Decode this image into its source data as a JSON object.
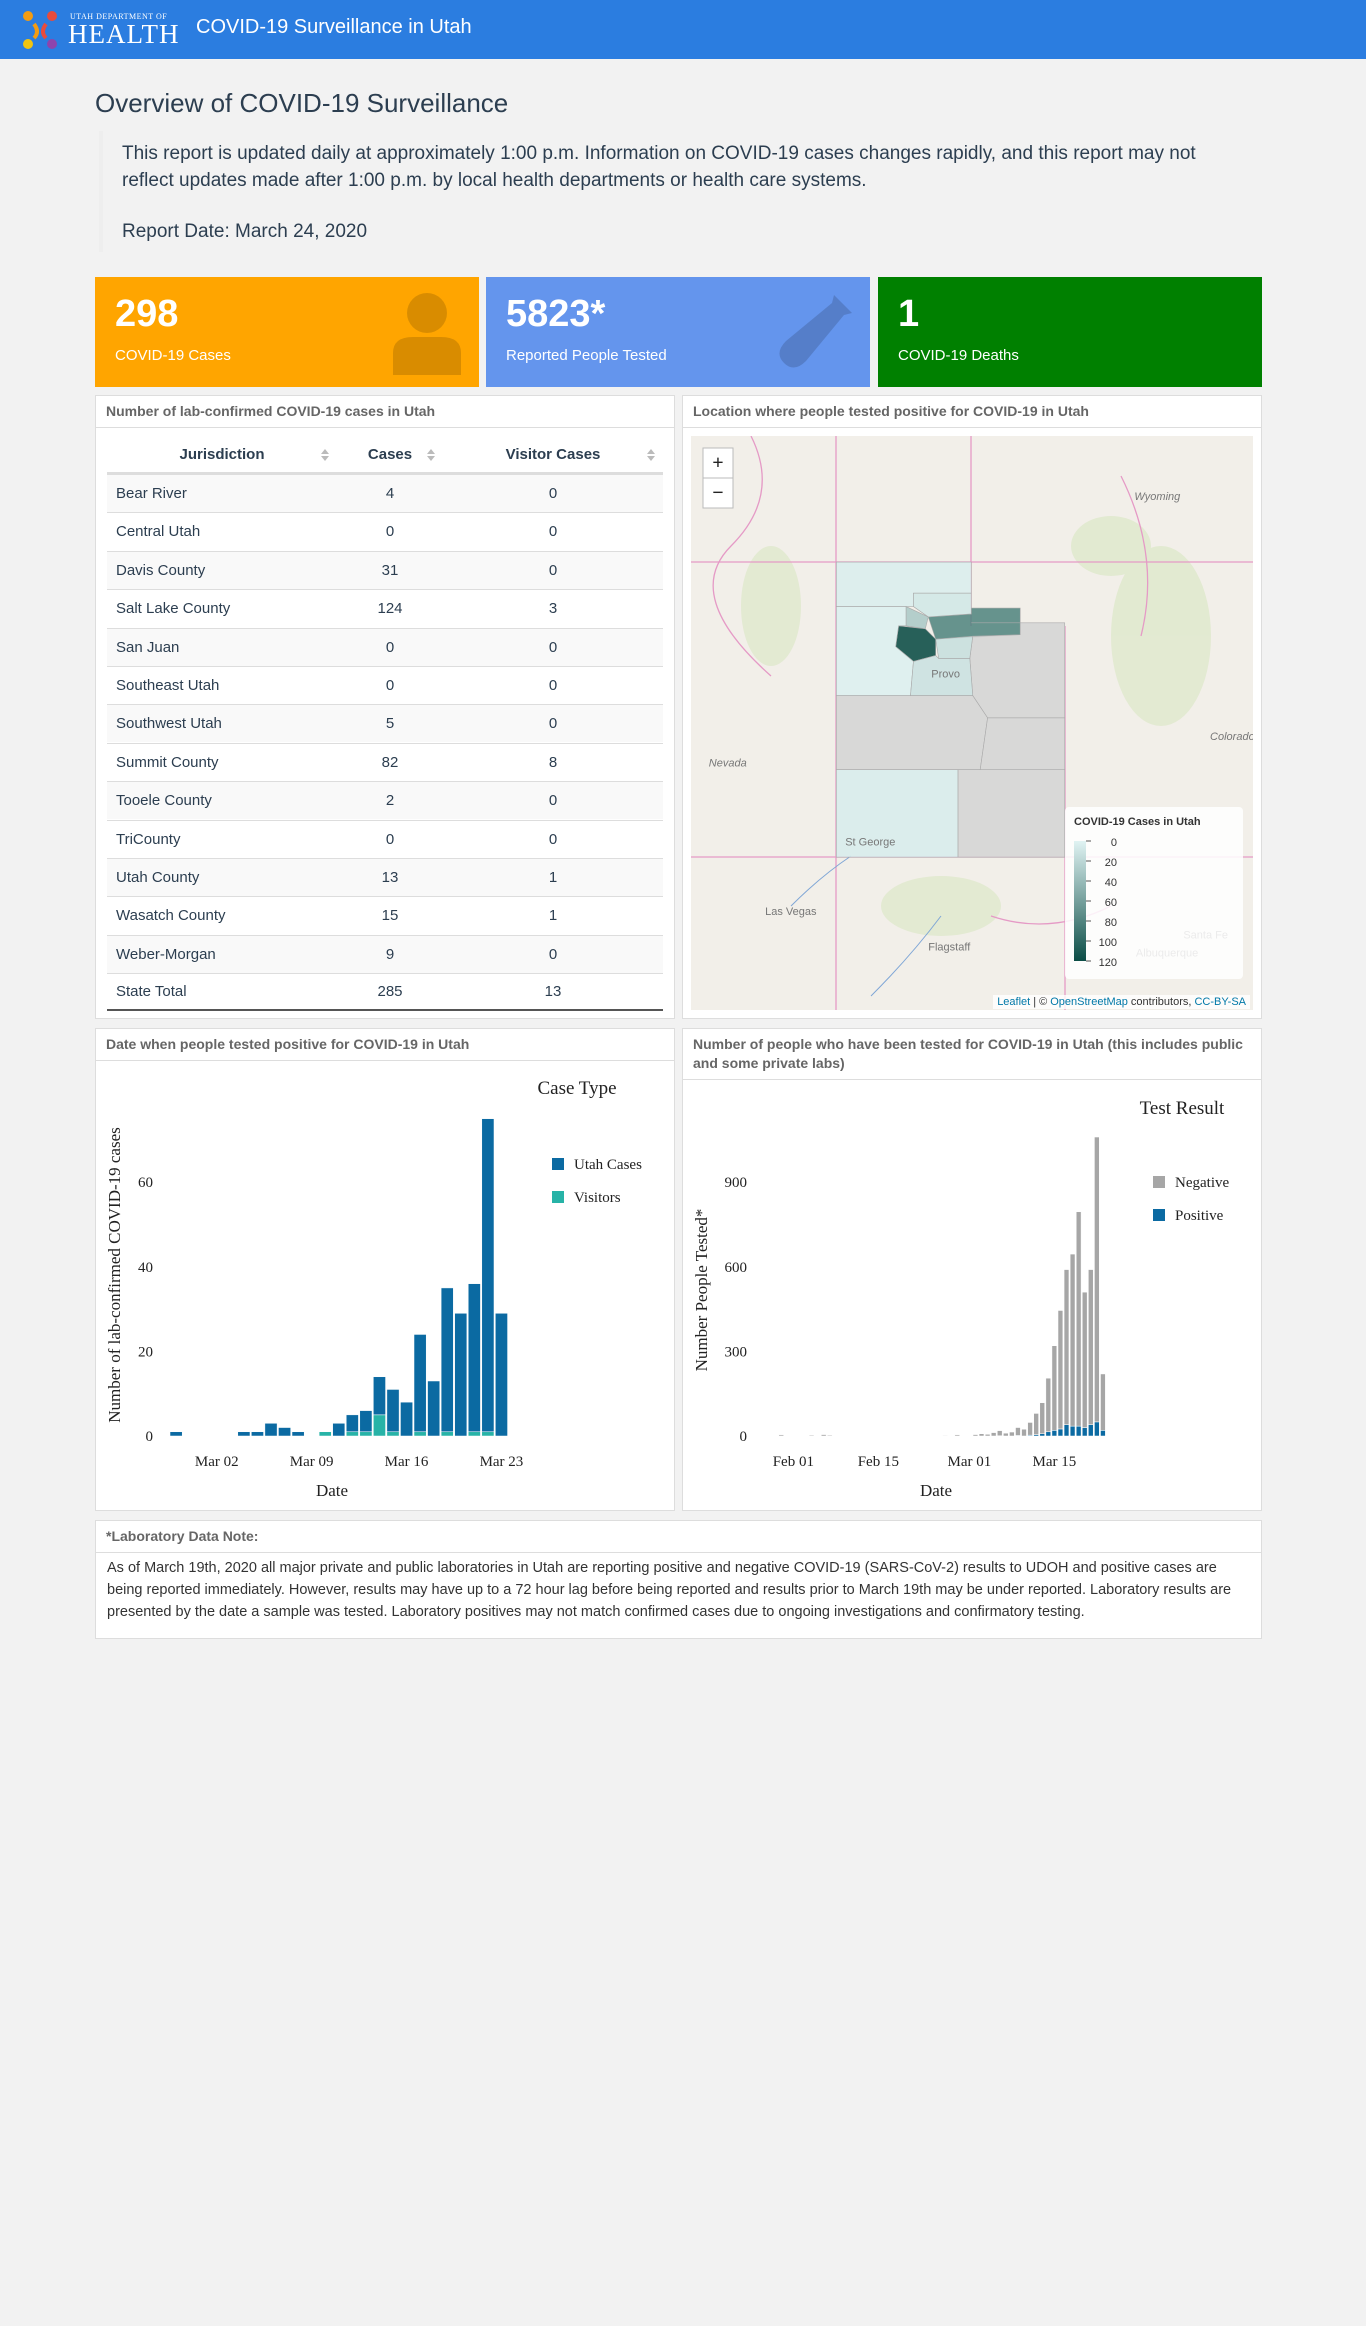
{
  "header": {
    "logo_top": "UTAH DEPARTMENT OF",
    "logo_main": "HEALTH",
    "title": "COVID-19 Surveillance in Utah"
  },
  "overview": {
    "title": "Overview of COVID-19 Surveillance",
    "text": "This report is updated daily at approximately 1:00 p.m. Information on COVID-19 cases changes rapidly, and this report may not reflect updates made after 1:00 p.m. by local health departments or health care systems.",
    "report_date": "Report Date: March 24, 2020"
  },
  "boxes": [
    {
      "value": 298,
      "label": "COVID-19 Cases",
      "color": "#ffa500"
    },
    {
      "value": "5823*",
      "label": "Reported People Tested",
      "color": "#6495ed"
    },
    {
      "value": 1,
      "label": "COVID-19 Deaths",
      "color": "#008000"
    }
  ],
  "table": {
    "title": "Number of lab-confirmed COVID-19 cases in Utah",
    "columns": [
      "Jurisdiction",
      "Cases",
      "Visitor Cases"
    ],
    "rows": [
      [
        "Bear River",
        4,
        0
      ],
      [
        "Central Utah",
        0,
        0
      ],
      [
        "Davis County",
        31,
        0
      ],
      [
        "Salt Lake County",
        124,
        3
      ],
      [
        "San Juan",
        0,
        0
      ],
      [
        "Southeast Utah",
        0,
        0
      ],
      [
        "Southwest Utah",
        5,
        0
      ],
      [
        "Summit County",
        82,
        8
      ],
      [
        "Tooele County",
        2,
        0
      ],
      [
        "TriCounty",
        0,
        0
      ],
      [
        "Utah County",
        13,
        1
      ],
      [
        "Wasatch County",
        15,
        1
      ],
      [
        "Weber-Morgan",
        9,
        0
      ]
    ],
    "total": [
      "State Total",
      285,
      13
    ]
  },
  "map": {
    "title": "Location where people tested positive for COVID-19 in Utah",
    "zoom_in": "+",
    "zoom_out": "−",
    "labels": [
      "Wyoming",
      "Nevada",
      "Colorado",
      "Las Vegas",
      "Flagstaff",
      "St George",
      "Provo",
      "Albuquerque",
      "Santa Fe"
    ],
    "legend": {
      "title": "COVID-19 Cases in Utah",
      "ticks": [
        0,
        20,
        40,
        60,
        80,
        100,
        120
      ],
      "colors": [
        "#e0f3f3",
        "#0b4d46"
      ],
      "zero_color": "#d3d3d3"
    },
    "attribution": [
      "Leaflet",
      "| ©",
      "OpenStreetMap",
      "contributors,",
      "CC-BY-SA"
    ]
  },
  "chart_data": [
    {
      "type": "bar",
      "title": "Date when people tested positive for COVID-19 in Utah",
      "legend_title": "Case Type",
      "xlabel": "Date",
      "ylabel": "Number of lab-confirmed COVID-19 cases",
      "x": [
        "Feb 28",
        "Mar 04",
        "Mar 05",
        "Mar 06",
        "Mar 07",
        "Mar 08",
        "Mar 10",
        "Mar 11",
        "Mar 12",
        "Mar 13",
        "Mar 14",
        "Mar 15",
        "Mar 16",
        "Mar 17",
        "Mar 18",
        "Mar 19",
        "Mar 20",
        "Mar 21",
        "Mar 22",
        "Mar 23"
      ],
      "series": [
        {
          "name": "Utah Cases",
          "color": "#0b6aa2",
          "values": [
            1,
            1,
            1,
            3,
            2,
            1,
            0,
            3,
            4,
            5,
            9,
            10,
            8,
            23,
            13,
            34,
            29,
            35,
            74,
            29
          ]
        },
        {
          "name": "Visitors",
          "color": "#27b3a7",
          "values": [
            0,
            0,
            0,
            0,
            0,
            0,
            1,
            0,
            1,
            1,
            5,
            1,
            0,
            1,
            0,
            1,
            0,
            1,
            1,
            0
          ]
        }
      ],
      "xlim": [
        "Feb 26",
        "Mar 24"
      ],
      "xticks": [
        "Mar 02",
        "Mar 09",
        "Mar 16",
        "Mar 23"
      ],
      "ylim": [
        0,
        78
      ],
      "yticks": [
        0,
        20,
        40,
        60
      ]
    },
    {
      "type": "bar",
      "title": "Number of people who have been tested for COVID-19 in Utah (this includes public and some private labs)",
      "legend_title": "Test Result",
      "xlabel": "Date",
      "ylabel": "Number People Tested*",
      "x": [
        "Jan 30",
        "Feb 04",
        "Feb 06",
        "Feb 07",
        "Feb 26",
        "Feb 28",
        "Mar 02",
        "Mar 03",
        "Mar 04",
        "Mar 05",
        "Mar 06",
        "Mar 07",
        "Mar 08",
        "Mar 09",
        "Mar 10",
        "Mar 11",
        "Mar 12",
        "Mar 13",
        "Mar 14",
        "Mar 15",
        "Mar 16",
        "Mar 17",
        "Mar 18",
        "Mar 19",
        "Mar 20",
        "Mar 21",
        "Mar 22",
        "Mar 23"
      ],
      "series": [
        {
          "name": "Negative",
          "color": "#a6a6a6",
          "values": [
            4,
            3,
            5,
            3,
            2,
            4,
            5,
            8,
            6,
            12,
            18,
            10,
            14,
            28,
            24,
            45,
            75,
            110,
            190,
            300,
            420,
            550,
            610,
            760,
            480,
            550,
            1010,
            200
          ]
        },
        {
          "name": "Positive",
          "color": "#0b6aa2",
          "values": [
            0,
            0,
            0,
            0,
            0,
            0,
            0,
            0,
            0,
            0,
            1,
            0,
            0,
            2,
            0,
            3,
            5,
            8,
            15,
            20,
            25,
            40,
            35,
            35,
            30,
            40,
            50,
            20
          ]
        }
      ],
      "xlim": [
        "Jan 27",
        "Mar 24"
      ],
      "xticks": [
        "Feb 01",
        "Feb 15",
        "Mar 01",
        "Mar 15"
      ],
      "ylim": [
        0,
        1170
      ],
      "yticks": [
        0,
        300,
        600,
        900
      ]
    }
  ],
  "note": {
    "title": "*Laboratory Data Note:",
    "text": "As of March 19th, 2020 all major private and public laboratories in Utah are reporting positive and negative COVID-19 (SARS-CoV-2) results to UDOH and positive cases are being reported immediately. However, results may have up to a 72 hour lag before being reported and results prior to March 19th may be under reported. Laboratory results are presented by the date a sample was tested. Laboratory positives may not match confirmed cases due to ongoing investigations and confirmatory testing."
  }
}
